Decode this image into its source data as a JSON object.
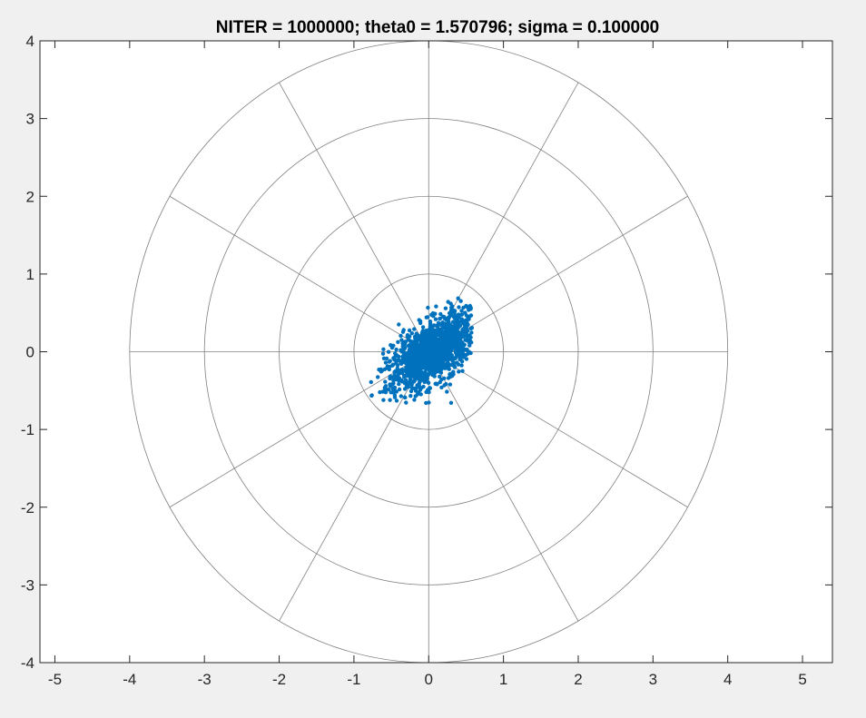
{
  "chart_data": {
    "type": "scatter",
    "title": "NITER = 1000000; theta0 = 1.570796; sigma = 0.100000",
    "xlabel": "",
    "ylabel": "",
    "xlim": [
      -5.2,
      5.4
    ],
    "ylim": [
      -4,
      4
    ],
    "x_ticks": [
      -5,
      -4,
      -3,
      -2,
      -1,
      0,
      1,
      2,
      3,
      4,
      5
    ],
    "y_ticks": [
      -4,
      -3,
      -2,
      -1,
      0,
      1,
      2,
      3,
      4
    ],
    "x_tick_labels": [
      "-5",
      "-4",
      "-3",
      "-2",
      "-1",
      "0",
      "1",
      "2",
      "3",
      "4",
      "5"
    ],
    "y_tick_labels": [
      "-4",
      "-3",
      "-2",
      "-1",
      "0",
      "1",
      "2",
      "3",
      "4"
    ],
    "polar_grid": {
      "circle_radii": [
        1,
        2,
        3,
        4
      ],
      "spoke_angles_deg": [
        0,
        30,
        60,
        90,
        120,
        150,
        180,
        210,
        240,
        270,
        300,
        330
      ],
      "spoke_length": 4,
      "color": "#808080"
    },
    "series": [
      {
        "marker_color": "#0072bd",
        "cluster": {
          "center": [
            0.05,
            0.0
          ],
          "major_axis_angle_deg": 37,
          "semi_major": 0.85,
          "semi_minor": 0.42,
          "x_range": [
            -0.8,
            0.58
          ],
          "y_range": [
            -0.66,
            0.7
          ]
        }
      }
    ],
    "grid": false,
    "box": true
  }
}
